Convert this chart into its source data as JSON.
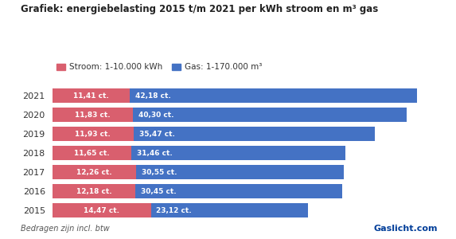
{
  "title": "Grafiek: energiebelasting 2015 t/m 2021 per kWh stroom en m³ gas",
  "years": [
    "2021",
    "2020",
    "2019",
    "2018",
    "2017",
    "2016",
    "2015"
  ],
  "stroom_values": [
    11.41,
    11.83,
    11.93,
    11.65,
    12.26,
    12.18,
    14.47
  ],
  "gas_values": [
    42.18,
    40.3,
    35.47,
    31.46,
    30.55,
    30.45,
    23.12
  ],
  "stroom_labels": [
    "11,41 ct.",
    "11,83 ct.",
    "11,93 ct.",
    "11,65 ct.",
    "12,26 ct.",
    "12,18 ct.",
    "14,47 ct."
  ],
  "gas_labels": [
    "42,18 ct.",
    "40,30 ct.",
    "35,47 ct.",
    "31,46 ct.",
    "30,55 ct.",
    "30,45 ct.",
    "23,12 ct."
  ],
  "stroom_color": "#d95f6e",
  "gas_color": "#4472c4",
  "legend_stroom": "Stroom: 1-10.000 kWh",
  "legend_gas": "Gas: 1-170.000 m³",
  "footnote": "Bedragen zijn incl. btw",
  "background_color": "#ffffff",
  "bar_height": 0.72,
  "xlim": [
    0,
    58
  ]
}
